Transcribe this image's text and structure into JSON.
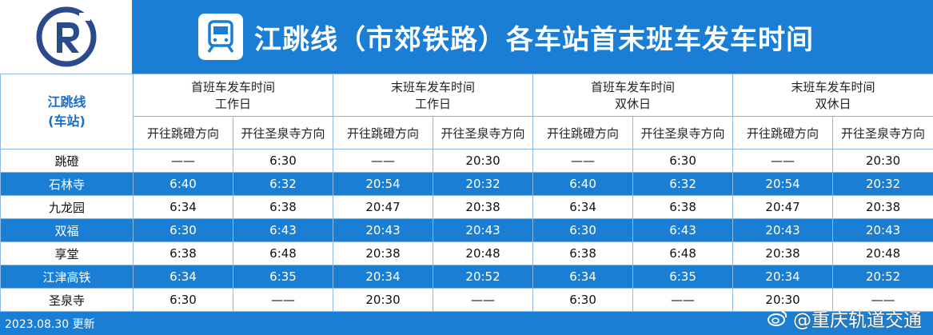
{
  "header": {
    "title": "江跳线（市郊铁路）各车站首末班车发车时间",
    "logo_icon": "rail-r-logo-icon",
    "train_icon": "train-icon"
  },
  "table": {
    "line_label": "江跳线",
    "station_label": "(车站)",
    "groups": [
      {
        "title": "首班车发车时间",
        "day": "工作日"
      },
      {
        "title": "末班车发车时间",
        "day": "工作日"
      },
      {
        "title": "首班车发车时间",
        "day": "双休日"
      },
      {
        "title": "末班车发车时间",
        "day": "双休日"
      }
    ],
    "directions": [
      "开往跳磴方向",
      "开往圣泉寺方向",
      "开往跳磴方向",
      "开往圣泉寺方向",
      "开往跳磴方向",
      "开往圣泉寺方向",
      "开往跳磴方向",
      "开往圣泉寺方向"
    ],
    "rows": [
      {
        "station": "跳磴",
        "times": [
          "——",
          "6:30",
          "——",
          "20:30",
          "——",
          "6:30",
          "——",
          "20:30"
        ]
      },
      {
        "station": "石林寺",
        "times": [
          "6:40",
          "6:32",
          "20:54",
          "20:32",
          "6:40",
          "6:32",
          "20:54",
          "20:32"
        ]
      },
      {
        "station": "九龙园",
        "times": [
          "6:34",
          "6:38",
          "20:47",
          "20:38",
          "6:34",
          "6:38",
          "20:47",
          "20:38"
        ]
      },
      {
        "station": "双福",
        "times": [
          "6:30",
          "6:43",
          "20:43",
          "20:43",
          "6:30",
          "6:43",
          "20:43",
          "20:43"
        ]
      },
      {
        "station": "享堂",
        "times": [
          "6:38",
          "6:48",
          "20:38",
          "20:48",
          "6:38",
          "6:48",
          "20:38",
          "20:48"
        ]
      },
      {
        "station": "江津高铁",
        "times": [
          "6:34",
          "6:35",
          "20:34",
          "20:52",
          "6:34",
          "6:35",
          "20:34",
          "20:52"
        ]
      },
      {
        "station": "圣泉寺",
        "times": [
          "6:30",
          "——",
          "20:30",
          "——",
          "6:30",
          "——",
          "20:30",
          "——"
        ]
      }
    ]
  },
  "footer": {
    "updated": "2023.08.30 更新",
    "watermark": "@重庆轨道交通"
  },
  "colors": {
    "primary": "#1a7fd4",
    "row_alt": "#ffffff"
  }
}
